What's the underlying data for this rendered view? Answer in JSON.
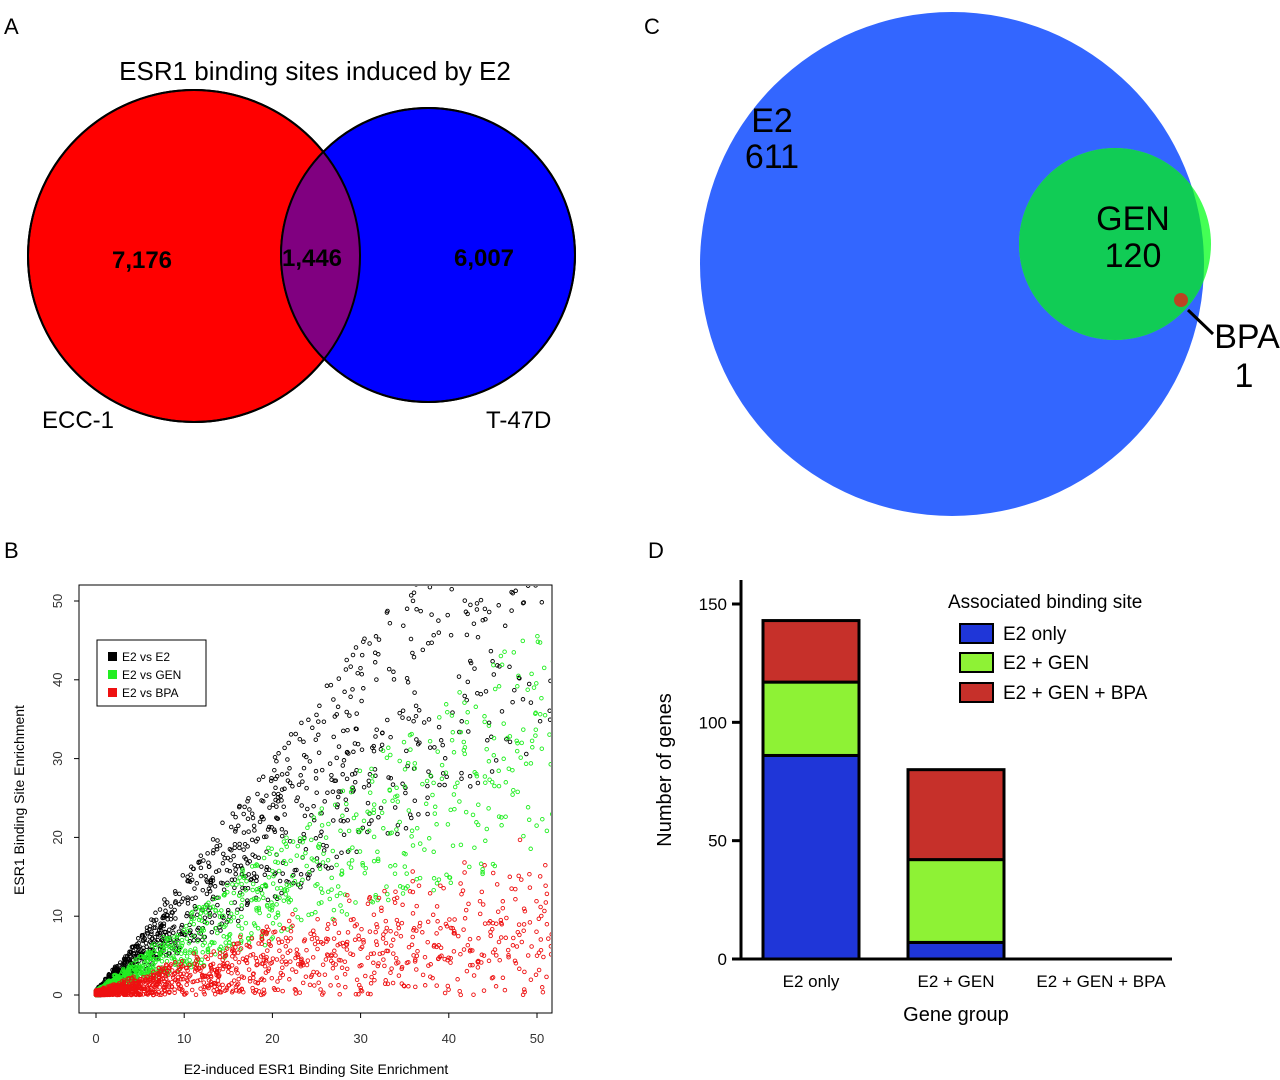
{
  "panels": {
    "a": "A",
    "b": "B",
    "c": "C",
    "d": "D"
  },
  "colors": {
    "red": "#ff0000",
    "blue": "#0000ff",
    "overlap": "#800080",
    "c_blue": "#3366ff",
    "c_green": "#11cc55",
    "c_bright_green": "#44ff55",
    "c_bpa": "#bb4422",
    "black_pts": "#000000",
    "green_pts": "#22ee22",
    "red_pts": "#ee1111",
    "d_blue": "#1f36d8",
    "d_green": "#8ef235",
    "d_red": "#c6302a"
  },
  "chart_data": [
    {
      "type": "venn",
      "panel": "A",
      "title": "ESR1 binding sites induced by E2",
      "sets": [
        {
          "name": "ECC-1",
          "only": "7,176"
        },
        {
          "name": "T-47D",
          "only": "6,007"
        }
      ],
      "overlap": "1,446"
    },
    {
      "type": "scatter",
      "panel": "B",
      "title": "",
      "xlabel": "E2-induced ESR1 Binding Site Enrichment",
      "ylabel": "ESR1 Binding Site Enrichment",
      "xlim": [
        0,
        52
      ],
      "ylim": [
        0,
        52
      ],
      "xticks": [
        "0",
        "10",
        "20",
        "30",
        "40",
        "50"
      ],
      "yticks": [
        "0",
        "10",
        "20",
        "30",
        "40",
        "50"
      ],
      "legend": [
        "E2 vs E2",
        "E2 vs GEN",
        "E2 vs BPA"
      ],
      "series": [
        {
          "name": "E2 vs E2",
          "slope_range": [
            0.6,
            1.5
          ],
          "n": 1300
        },
        {
          "name": "E2 vs GEN",
          "slope_range": [
            0.35,
            0.95
          ],
          "n": 1200
        },
        {
          "name": "E2 vs BPA",
          "slope_range": [
            0.0,
            0.45
          ],
          "n": 1400
        }
      ]
    },
    {
      "type": "venn",
      "panel": "C",
      "sets": [
        {
          "name": "E2",
          "value": "611"
        },
        {
          "name": "GEN",
          "value": "120"
        },
        {
          "name": "BPA",
          "value": "1"
        }
      ]
    },
    {
      "type": "bar",
      "panel": "D",
      "stacked": true,
      "xlabel": "Gene group",
      "ylabel": "Number of genes",
      "ylim": [
        0,
        160
      ],
      "yticks": [
        "0",
        "50",
        "100",
        "150"
      ],
      "categories": [
        "E2 only",
        "E2 + GEN",
        "E2 + GEN + BPA"
      ],
      "legend_title": "Associated binding site",
      "series": [
        {
          "name": "E2 only",
          "values": [
            86,
            7,
            0
          ]
        },
        {
          "name": "E2 + GEN",
          "values": [
            31,
            35,
            0
          ]
        },
        {
          "name": "E2 + GEN + BPA",
          "values": [
            26,
            38,
            0
          ]
        }
      ]
    }
  ]
}
